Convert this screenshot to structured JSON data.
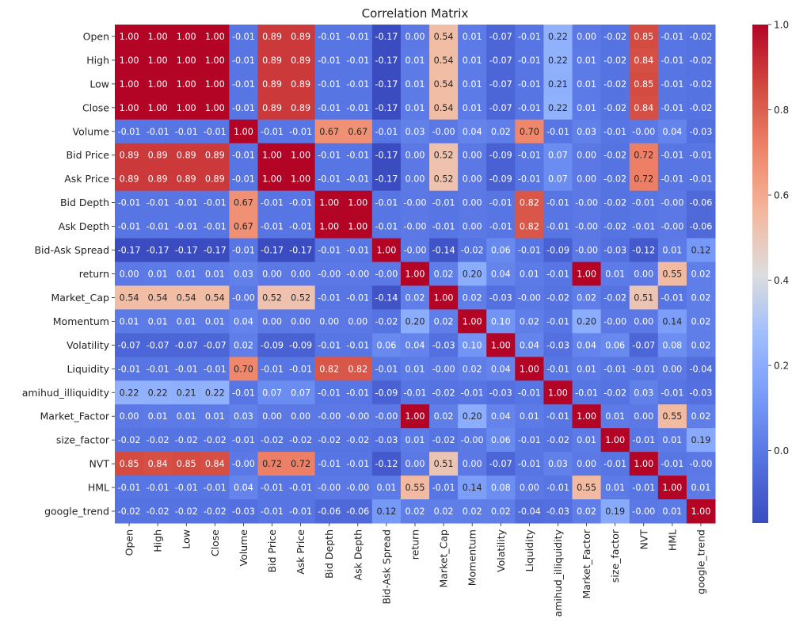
{
  "chart_data": {
    "type": "heatmap",
    "title": "Correlation Matrix",
    "xlabel": "",
    "ylabel": "",
    "colormap": "coolwarm",
    "colorbar": {
      "range": [
        -0.17,
        1.0
      ],
      "ticks": [
        "0.0",
        "0.2",
        "0.4",
        "0.6",
        "0.8",
        "1.0"
      ],
      "tick_values": [
        0.0,
        0.2,
        0.4,
        0.6,
        0.8,
        1.0
      ],
      "placement": "right"
    },
    "labels": [
      "Open",
      "High",
      "Low",
      "Close",
      "Volume",
      "Bid Price",
      "Ask Price",
      "Bid Depth",
      "Ask Depth",
      "Bid-Ask Spread",
      "return",
      "Market_Cap",
      "Momentum",
      "Volatility",
      "Liquidity",
      "amihud_illiquidity",
      "Market_Factor",
      "size_factor",
      "NVT",
      "HML",
      "google_trend"
    ],
    "values": [
      [
        "1.00",
        "1.00",
        "1.00",
        "1.00",
        "-0.01",
        "0.89",
        "0.89",
        "-0.01",
        "-0.01",
        "-0.17",
        "0.00",
        "0.54",
        "0.01",
        "-0.07",
        "-0.01",
        "0.22",
        "0.00",
        "-0.02",
        "0.85",
        "-0.01",
        "-0.02"
      ],
      [
        "1.00",
        "1.00",
        "1.00",
        "1.00",
        "-0.01",
        "0.89",
        "0.89",
        "-0.01",
        "-0.01",
        "-0.17",
        "0.01",
        "0.54",
        "0.01",
        "-0.07",
        "-0.01",
        "0.22",
        "0.01",
        "-0.02",
        "0.84",
        "-0.01",
        "-0.02"
      ],
      [
        "1.00",
        "1.00",
        "1.00",
        "1.00",
        "-0.01",
        "0.89",
        "0.89",
        "-0.01",
        "-0.01",
        "-0.17",
        "0.01",
        "0.54",
        "0.01",
        "-0.07",
        "-0.01",
        "0.21",
        "0.01",
        "-0.02",
        "0.85",
        "-0.01",
        "-0.02"
      ],
      [
        "1.00",
        "1.00",
        "1.00",
        "1.00",
        "-0.01",
        "0.89",
        "0.89",
        "-0.01",
        "-0.01",
        "-0.17",
        "0.01",
        "0.54",
        "0.01",
        "-0.07",
        "-0.01",
        "0.22",
        "0.01",
        "-0.02",
        "0.84",
        "-0.01",
        "-0.02"
      ],
      [
        "-0.01",
        "-0.01",
        "-0.01",
        "-0.01",
        "1.00",
        "-0.01",
        "-0.01",
        "0.67",
        "0.67",
        "-0.01",
        "0.03",
        "-0.00",
        "0.04",
        "0.02",
        "0.70",
        "-0.01",
        "0.03",
        "-0.01",
        "-0.00",
        "0.04",
        "-0.03"
      ],
      [
        "0.89",
        "0.89",
        "0.89",
        "0.89",
        "-0.01",
        "1.00",
        "1.00",
        "-0.01",
        "-0.01",
        "-0.17",
        "0.00",
        "0.52",
        "0.00",
        "-0.09",
        "-0.01",
        "0.07",
        "0.00",
        "-0.02",
        "0.72",
        "-0.01",
        "-0.01"
      ],
      [
        "0.89",
        "0.89",
        "0.89",
        "0.89",
        "-0.01",
        "1.00",
        "1.00",
        "-0.01",
        "-0.01",
        "-0.17",
        "0.00",
        "0.52",
        "0.00",
        "-0.09",
        "-0.01",
        "0.07",
        "0.00",
        "-0.02",
        "0.72",
        "-0.01",
        "-0.01"
      ],
      [
        "-0.01",
        "-0.01",
        "-0.01",
        "-0.01",
        "0.67",
        "-0.01",
        "-0.01",
        "1.00",
        "1.00",
        "-0.01",
        "-0.00",
        "-0.01",
        "0.00",
        "-0.01",
        "0.82",
        "-0.01",
        "-0.00",
        "-0.02",
        "-0.01",
        "-0.00",
        "-0.06"
      ],
      [
        "-0.01",
        "-0.01",
        "-0.01",
        "-0.01",
        "0.67",
        "-0.01",
        "-0.01",
        "1.00",
        "1.00",
        "-0.01",
        "-0.00",
        "-0.01",
        "0.00",
        "-0.01",
        "0.82",
        "-0.01",
        "-0.00",
        "-0.02",
        "-0.01",
        "-0.00",
        "-0.06"
      ],
      [
        "-0.17",
        "-0.17",
        "-0.17",
        "-0.17",
        "-0.01",
        "-0.17",
        "-0.17",
        "-0.01",
        "-0.01",
        "1.00",
        "-0.00",
        "-0.14",
        "-0.02",
        "0.06",
        "-0.01",
        "-0.09",
        "-0.00",
        "-0.03",
        "-0.12",
        "0.01",
        "0.12"
      ],
      [
        "0.00",
        "0.01",
        "0.01",
        "0.01",
        "0.03",
        "0.00",
        "0.00",
        "-0.00",
        "-0.00",
        "-0.00",
        "1.00",
        "0.02",
        "0.20",
        "0.04",
        "0.01",
        "-0.01",
        "1.00",
        "0.01",
        "0.00",
        "0.55",
        "0.02"
      ],
      [
        "0.54",
        "0.54",
        "0.54",
        "0.54",
        "-0.00",
        "0.52",
        "0.52",
        "-0.01",
        "-0.01",
        "-0.14",
        "0.02",
        "1.00",
        "0.02",
        "-0.03",
        "-0.00",
        "-0.02",
        "0.02",
        "-0.02",
        "0.51",
        "-0.01",
        "0.02"
      ],
      [
        "0.01",
        "0.01",
        "0.01",
        "0.01",
        "0.04",
        "0.00",
        "0.00",
        "0.00",
        "0.00",
        "-0.02",
        "0.20",
        "0.02",
        "1.00",
        "0.10",
        "0.02",
        "-0.01",
        "0.20",
        "-0.00",
        "0.00",
        "0.14",
        "0.02"
      ],
      [
        "-0.07",
        "-0.07",
        "-0.07",
        "-0.07",
        "0.02",
        "-0.09",
        "-0.09",
        "-0.01",
        "-0.01",
        "0.06",
        "0.04",
        "-0.03",
        "0.10",
        "1.00",
        "0.04",
        "-0.03",
        "0.04",
        "0.06",
        "-0.07",
        "0.08",
        "0.02"
      ],
      [
        "-0.01",
        "-0.01",
        "-0.01",
        "-0.01",
        "0.70",
        "-0.01",
        "-0.01",
        "0.82",
        "0.82",
        "-0.01",
        "0.01",
        "-0.00",
        "0.02",
        "0.04",
        "1.00",
        "-0.01",
        "0.01",
        "-0.01",
        "-0.01",
        "0.00",
        "-0.04"
      ],
      [
        "0.22",
        "0.22",
        "0.21",
        "0.22",
        "-0.01",
        "0.07",
        "0.07",
        "-0.01",
        "-0.01",
        "-0.09",
        "-0.01",
        "-0.02",
        "-0.01",
        "-0.03",
        "-0.01",
        "1.00",
        "-0.01",
        "-0.02",
        "0.03",
        "-0.01",
        "-0.03"
      ],
      [
        "0.00",
        "0.01",
        "0.01",
        "0.01",
        "0.03",
        "0.00",
        "0.00",
        "-0.00",
        "-0.00",
        "-0.00",
        "1.00",
        "0.02",
        "0.20",
        "0.04",
        "0.01",
        "-0.01",
        "1.00",
        "0.01",
        "0.00",
        "0.55",
        "0.02"
      ],
      [
        "-0.02",
        "-0.02",
        "-0.02",
        "-0.02",
        "-0.01",
        "-0.02",
        "-0.02",
        "-0.02",
        "-0.02",
        "-0.03",
        "0.01",
        "-0.02",
        "-0.00",
        "0.06",
        "-0.01",
        "-0.02",
        "0.01",
        "1.00",
        "-0.01",
        "0.01",
        "0.19"
      ],
      [
        "0.85",
        "0.84",
        "0.85",
        "0.84",
        "-0.00",
        "0.72",
        "0.72",
        "-0.01",
        "-0.01",
        "-0.12",
        "0.00",
        "0.51",
        "0.00",
        "-0.07",
        "-0.01",
        "0.03",
        "0.00",
        "-0.01",
        "1.00",
        "-0.01",
        "-0.00"
      ],
      [
        "-0.01",
        "-0.01",
        "-0.01",
        "-0.01",
        "0.04",
        "-0.01",
        "-0.01",
        "-0.00",
        "-0.00",
        "0.01",
        "0.55",
        "-0.01",
        "0.14",
        "0.08",
        "0.00",
        "-0.01",
        "0.55",
        "0.01",
        "-0.01",
        "1.00",
        "0.01"
      ],
      [
        "-0.02",
        "-0.02",
        "-0.02",
        "-0.02",
        "-0.03",
        "-0.01",
        "-0.01",
        "-0.06",
        "-0.06",
        "0.12",
        "0.02",
        "0.02",
        "0.02",
        "0.02",
        "-0.04",
        "-0.03",
        "0.02",
        "0.19",
        "-0.00",
        "0.01",
        "1.00"
      ]
    ]
  }
}
